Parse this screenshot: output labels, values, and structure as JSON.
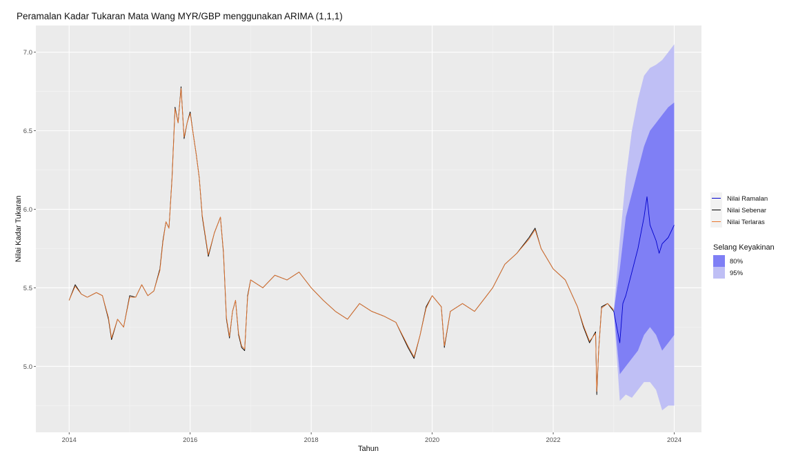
{
  "chart_data": {
    "type": "line",
    "title": "Peramalan Kadar Tukaran Mata Wang MYR/GBP menggunakan ARIMA (1,1,1)",
    "xlabel": "Tahun",
    "ylabel": "Nilai Kadar Tukaran",
    "xlim": [
      2013.45,
      2024.45
    ],
    "ylim": [
      4.58,
      7.17
    ],
    "x_ticks": [
      2014,
      2016,
      2018,
      2020,
      2022,
      2024
    ],
    "x_tick_labels": [
      "2014",
      "2016",
      "2018",
      "2020",
      "2022",
      "2024"
    ],
    "y_ticks": [
      5.0,
      5.5,
      6.0,
      6.5,
      7.0
    ],
    "y_tick_labels": [
      "5.0",
      "5.5",
      "6.0",
      "6.5",
      "7.0"
    ],
    "grid": true,
    "legend_placement": "right",
    "colors": {
      "panel": "#ebebeb",
      "actual": "#000000",
      "fitted": "#e8742b",
      "forecast": "#0000cc",
      "band80": "#7f7ff5",
      "band95": "#bfbff5"
    },
    "legend": {
      "lines": [
        {
          "label": "Nilai Ramalan",
          "color": "#0000cc"
        },
        {
          "label": "Nilai Sebenar",
          "color": "#000000"
        },
        {
          "label": "Nilai Terlaras",
          "color": "#e8742b"
        }
      ],
      "band_title": "Selang Keyakinan",
      "bands": [
        {
          "label": "80%",
          "color": "#7f7ff5"
        },
        {
          "label": "95%",
          "color": "#bfbff5"
        }
      ]
    },
    "series": [
      {
        "name": "Nilai Sebenar",
        "x": [
          2014.0,
          2014.1,
          2014.2,
          2014.3,
          2014.45,
          2014.55,
          2014.65,
          2014.7,
          2014.8,
          2014.9,
          2015.0,
          2015.1,
          2015.2,
          2015.3,
          2015.4,
          2015.5,
          2015.55,
          2015.6,
          2015.65,
          2015.7,
          2015.75,
          2015.8,
          2015.85,
          2015.9,
          2015.95,
          2016.0,
          2016.05,
          2016.1,
          2016.15,
          2016.2,
          2016.3,
          2016.4,
          2016.5,
          2016.55,
          2016.6,
          2016.65,
          2016.7,
          2016.75,
          2016.8,
          2016.85,
          2016.9,
          2016.95,
          2017.0,
          2017.2,
          2017.4,
          2017.6,
          2017.8,
          2018.0,
          2018.2,
          2018.4,
          2018.6,
          2018.8,
          2019.0,
          2019.2,
          2019.4,
          2019.6,
          2019.7,
          2019.8,
          2019.9,
          2020.0,
          2020.15,
          2020.2,
          2020.3,
          2020.5,
          2020.7,
          2020.9,
          2021.0,
          2021.2,
          2021.4,
          2021.6,
          2021.7,
          2021.8,
          2022.0,
          2022.2,
          2022.4,
          2022.5,
          2022.6,
          2022.7,
          2022.72,
          2022.75,
          2022.8,
          2022.9,
          2023.0
        ],
        "values": [
          5.42,
          5.52,
          5.46,
          5.44,
          5.47,
          5.45,
          5.3,
          5.17,
          5.3,
          5.25,
          5.45,
          5.44,
          5.52,
          5.45,
          5.48,
          5.62,
          5.8,
          5.92,
          5.88,
          6.2,
          6.65,
          6.55,
          6.78,
          6.45,
          6.55,
          6.62,
          6.48,
          6.35,
          6.2,
          5.95,
          5.7,
          5.85,
          5.95,
          5.72,
          5.3,
          5.18,
          5.35,
          5.42,
          5.2,
          5.12,
          5.1,
          5.45,
          5.55,
          5.5,
          5.58,
          5.55,
          5.6,
          5.5,
          5.42,
          5.35,
          5.3,
          5.4,
          5.35,
          5.32,
          5.28,
          5.12,
          5.05,
          5.2,
          5.38,
          5.45,
          5.38,
          5.12,
          5.35,
          5.4,
          5.35,
          5.45,
          5.5,
          5.65,
          5.72,
          5.82,
          5.88,
          5.75,
          5.62,
          5.55,
          5.38,
          5.25,
          5.15,
          5.22,
          4.82,
          5.1,
          5.38,
          5.4,
          5.35
        ]
      },
      {
        "name": "Nilai Terlaras",
        "x": [
          2014.0,
          2014.1,
          2014.2,
          2014.3,
          2014.45,
          2014.55,
          2014.65,
          2014.7,
          2014.8,
          2014.9,
          2015.0,
          2015.1,
          2015.2,
          2015.3,
          2015.4,
          2015.5,
          2015.55,
          2015.6,
          2015.65,
          2015.7,
          2015.75,
          2015.8,
          2015.85,
          2015.9,
          2015.95,
          2016.0,
          2016.05,
          2016.1,
          2016.15,
          2016.2,
          2016.3,
          2016.4,
          2016.5,
          2016.55,
          2016.6,
          2016.65,
          2016.7,
          2016.75,
          2016.8,
          2016.85,
          2016.9,
          2016.95,
          2017.0,
          2017.2,
          2017.4,
          2017.6,
          2017.8,
          2018.0,
          2018.2,
          2018.4,
          2018.6,
          2018.8,
          2019.0,
          2019.2,
          2019.4,
          2019.6,
          2019.7,
          2019.8,
          2019.9,
          2020.0,
          2020.15,
          2020.2,
          2020.3,
          2020.5,
          2020.7,
          2020.9,
          2021.0,
          2021.2,
          2021.4,
          2021.6,
          2021.7,
          2021.8,
          2022.0,
          2022.2,
          2022.4,
          2022.5,
          2022.6,
          2022.7,
          2022.72,
          2022.75,
          2022.8,
          2022.9,
          2023.0
        ],
        "values": [
          5.42,
          5.51,
          5.46,
          5.44,
          5.47,
          5.45,
          5.31,
          5.18,
          5.3,
          5.25,
          5.44,
          5.44,
          5.52,
          5.45,
          5.48,
          5.61,
          5.79,
          5.92,
          5.88,
          6.19,
          6.64,
          6.55,
          6.77,
          6.46,
          6.55,
          6.61,
          6.48,
          6.35,
          6.2,
          5.96,
          5.71,
          5.85,
          5.95,
          5.73,
          5.31,
          5.19,
          5.35,
          5.42,
          5.21,
          5.13,
          5.11,
          5.44,
          5.55,
          5.5,
          5.58,
          5.55,
          5.6,
          5.5,
          5.42,
          5.35,
          5.3,
          5.4,
          5.35,
          5.32,
          5.28,
          5.13,
          5.06,
          5.2,
          5.37,
          5.45,
          5.38,
          5.13,
          5.35,
          5.4,
          5.35,
          5.45,
          5.5,
          5.65,
          5.72,
          5.81,
          5.87,
          5.75,
          5.62,
          5.55,
          5.38,
          5.26,
          5.16,
          5.21,
          4.84,
          5.1,
          5.37,
          5.4,
          5.36
        ]
      },
      {
        "name": "Nilai Ramalan",
        "x": [
          2023.0,
          2023.05,
          2023.1,
          2023.15,
          2023.2,
          2023.3,
          2023.4,
          2023.5,
          2023.55,
          2023.6,
          2023.7,
          2023.75,
          2023.8,
          2023.9,
          2024.0
        ],
        "values": [
          5.35,
          5.25,
          5.15,
          5.4,
          5.45,
          5.6,
          5.75,
          5.95,
          6.08,
          5.9,
          5.8,
          5.72,
          5.78,
          5.82,
          5.9
        ]
      }
    ],
    "intervals": {
      "x": [
        2023.0,
        2023.1,
        2023.2,
        2023.3,
        2023.4,
        2023.5,
        2023.6,
        2023.7,
        2023.8,
        2023.9,
        2024.0
      ],
      "lo95": [
        5.35,
        4.78,
        4.82,
        4.8,
        4.85,
        4.9,
        4.9,
        4.85,
        4.72,
        4.75,
        4.75
      ],
      "lo80": [
        5.35,
        4.95,
        5.0,
        5.05,
        5.1,
        5.2,
        5.25,
        5.2,
        5.1,
        5.15,
        5.2
      ],
      "hi80": [
        5.35,
        5.62,
        5.95,
        6.1,
        6.25,
        6.4,
        6.5,
        6.55,
        6.6,
        6.65,
        6.68
      ],
      "hi95": [
        5.35,
        5.8,
        6.2,
        6.5,
        6.7,
        6.85,
        6.9,
        6.92,
        6.95,
        7.0,
        7.05
      ]
    }
  }
}
